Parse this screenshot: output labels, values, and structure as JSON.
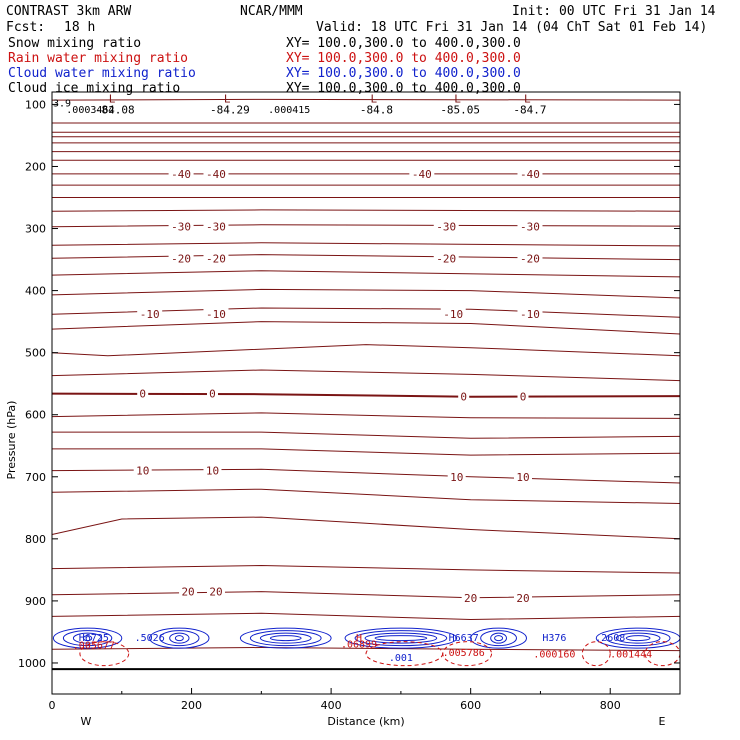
{
  "header": {
    "model": "CONTRAST  3km ARW",
    "center": "NCAR/MMM",
    "init": "Init: 00 UTC Fri 31 Jan 14",
    "fcst_label": "Fcst:",
    "fcst_value": "18 h",
    "valid": "Valid: 18 UTC Fri 31 Jan 14 (04 ChT Sat 01 Feb 14)"
  },
  "legend": [
    {
      "name": "Snow mixing ratio",
      "xy": "XY= 100.0,300.0 to 400.0,300.0",
      "color": "#000000"
    },
    {
      "name": "Rain water mixing ratio",
      "xy": "XY= 100.0,300.0 to 400.0,300.0",
      "color": "#cc1111"
    },
    {
      "name": "Cloud water mixing ratio",
      "xy": "XY= 100.0,300.0 to 400.0,300.0",
      "color": "#1122cc"
    },
    {
      "name": "Cloud ice mixing ratio",
      "xy": "XY= 100.0,300.0 to 400.0,300.0",
      "color": "#000000"
    }
  ],
  "colors": {
    "temperature": "#7a1414",
    "rain": "#cc1111",
    "cloud_water": "#1122cc",
    "frame": "#000000"
  },
  "chart_data": {
    "type": "cross-section",
    "xlabel": "Distance (km)",
    "ylabel": "Pressure (hPa)",
    "xlim": [
      0,
      900
    ],
    "ylim": [
      1050,
      80
    ],
    "x_ticks": [
      0,
      200,
      400,
      600,
      800
    ],
    "y_ticks": [
      100,
      200,
      300,
      400,
      500,
      600,
      700,
      800,
      900,
      1000
    ],
    "x_end_labels": {
      "left": "W",
      "right": "E"
    },
    "temperature_lines": [
      {
        "x": [
          0,
          300,
          900
        ],
        "p": [
          93,
          92,
          93
        ]
      },
      {
        "x": [
          0,
          900
        ],
        "p": [
          130,
          130
        ]
      },
      {
        "x": [
          0,
          900
        ],
        "p": [
          145,
          145
        ]
      },
      {
        "x": [
          0,
          900
        ],
        "p": [
          152,
          152
        ]
      },
      {
        "x": [
          0,
          900
        ],
        "p": [
          162,
          162
        ]
      },
      {
        "x": [
          0,
          900
        ],
        "p": [
          176,
          176
        ]
      },
      {
        "x": [
          0,
          900
        ],
        "p": [
          190,
          190
        ]
      },
      {
        "x": [
          0,
          900
        ],
        "p": [
          212,
          212
        ]
      },
      {
        "x": [
          0,
          900
        ],
        "p": [
          230,
          230
        ]
      },
      {
        "x": [
          0,
          900
        ],
        "p": [
          250,
          250
        ]
      },
      {
        "x": [
          0,
          300,
          900
        ],
        "p": [
          272,
          270,
          272
        ]
      },
      {
        "x": [
          0,
          300,
          900
        ],
        "p": [
          297,
          294,
          296
        ]
      },
      {
        "x": [
          0,
          300,
          900
        ],
        "p": [
          327,
          323,
          328
        ]
      },
      {
        "x": [
          0,
          300,
          900
        ],
        "p": [
          348,
          342,
          350
        ]
      },
      {
        "x": [
          0,
          300,
          900
        ],
        "p": [
          375,
          368,
          378
        ]
      },
      {
        "x": [
          0,
          300,
          600,
          900
        ],
        "p": [
          407,
          398,
          400,
          412
        ]
      },
      {
        "x": [
          0,
          300,
          600,
          900
        ],
        "p": [
          438,
          428,
          430,
          443
        ]
      },
      {
        "x": [
          0,
          300,
          600,
          900
        ],
        "p": [
          462,
          450,
          453,
          470
        ]
      },
      {
        "x": [
          0,
          80,
          450,
          600,
          900
        ],
        "p": [
          500,
          505,
          487,
          492,
          505
        ]
      },
      {
        "x": [
          0,
          300,
          600,
          900
        ],
        "p": [
          537,
          528,
          535,
          545
        ]
      },
      {
        "x": [
          0,
          300,
          600,
          900
        ],
        "p": [
          566,
          567,
          571,
          570
        ]
      },
      {
        "x": [
          0,
          300,
          600,
          900
        ],
        "p": [
          603,
          597,
          605,
          606
        ]
      },
      {
        "x": [
          0,
          300,
          600,
          900
        ],
        "p": [
          628,
          628,
          638,
          635
        ]
      },
      {
        "x": [
          0,
          300,
          600,
          900
        ],
        "p": [
          655,
          655,
          665,
          662
        ]
      },
      {
        "x": [
          0,
          300,
          600,
          900
        ],
        "p": [
          690,
          688,
          700,
          710
        ]
      },
      {
        "x": [
          0,
          300,
          600,
          900
        ],
        "p": [
          725,
          720,
          737,
          743
        ]
      },
      {
        "x": [
          0,
          100,
          300,
          450,
          600,
          900
        ],
        "p": [
          793,
          768,
          765,
          775,
          785,
          800
        ]
      },
      {
        "x": [
          0,
          300,
          600,
          900
        ],
        "p": [
          848,
          843,
          850,
          855
        ]
      },
      {
        "x": [
          0,
          300,
          600,
          900
        ],
        "p": [
          890,
          885,
          895,
          890
        ]
      },
      {
        "x": [
          0,
          300,
          600,
          900
        ],
        "p": [
          925,
          920,
          930,
          925
        ]
      },
      {
        "x": [
          0,
          300,
          600,
          900
        ],
        "p": [
          978,
          975,
          978,
          980
        ]
      }
    ],
    "temperature_labels": [
      {
        "text": "-40",
        "x": 185,
        "p": 212
      },
      {
        "text": "-40",
        "x": 235,
        "p": 212
      },
      {
        "text": "-40",
        "x": 530,
        "p": 212
      },
      {
        "text": "-40",
        "x": 685,
        "p": 212
      },
      {
        "text": "-30",
        "x": 185,
        "p": 297
      },
      {
        "text": "-30",
        "x": 235,
        "p": 297
      },
      {
        "text": "-30",
        "x": 565,
        "p": 297
      },
      {
        "text": "-30",
        "x": 685,
        "p": 297
      },
      {
        "text": "-20",
        "x": 185,
        "p": 348
      },
      {
        "text": "-20",
        "x": 235,
        "p": 348
      },
      {
        "text": "-20",
        "x": 565,
        "p": 348
      },
      {
        "text": "-20",
        "x": 685,
        "p": 348
      },
      {
        "text": "-10",
        "x": 140,
        "p": 438
      },
      {
        "text": "-10",
        "x": 235,
        "p": 438
      },
      {
        "text": "-10",
        "x": 575,
        "p": 438
      },
      {
        "text": "-10",
        "x": 685,
        "p": 438
      },
      {
        "text": "0",
        "x": 130,
        "p": 566
      },
      {
        "text": "0",
        "x": 230,
        "p": 566
      },
      {
        "text": "0",
        "x": 590,
        "p": 571
      },
      {
        "text": "0",
        "x": 675,
        "p": 571
      },
      {
        "text": "10",
        "x": 130,
        "p": 690
      },
      {
        "text": "10",
        "x": 230,
        "p": 690
      },
      {
        "text": "10",
        "x": 580,
        "p": 700
      },
      {
        "text": "10",
        "x": 675,
        "p": 700
      },
      {
        "text": "20",
        "x": 195,
        "p": 885
      },
      {
        "text": "20",
        "x": 235,
        "p": 885
      },
      {
        "text": "20",
        "x": 600,
        "p": 895
      },
      {
        "text": "20",
        "x": 675,
        "p": 895
      }
    ],
    "min_markers": [
      {
        "letter": "L",
        "text": "-84.08",
        "x": 90,
        "p": 100
      },
      {
        "letter": "L",
        "text": "-84.29",
        "x": 255,
        "p": 100
      },
      {
        "letter": "L",
        "text": "-84.8",
        "x": 465,
        "p": 100
      },
      {
        "letter": "L",
        "text": "-85.05",
        "x": 585,
        "p": 100
      },
      {
        "letter": "L",
        "text": "-84.7",
        "x": 685,
        "p": 100
      }
    ],
    "max_markers": [
      {
        "letter": "H",
        "text": ".0003462",
        "x": 55,
        "p": 107,
        "color": "#000000"
      },
      {
        "letter": "H",
        "text": ".000415",
        "x": 340,
        "p": 107,
        "color": "#000000"
      },
      {
        "letter": "H",
        "text": "H6725",
        "x": 60,
        "p": 958,
        "color": "#1122cc"
      },
      {
        "letter": "H",
        "text": ".5026",
        "x": 140,
        "p": 958,
        "color": "#1122cc"
      },
      {
        "letter": "H",
        "text": "H6637",
        "x": 590,
        "p": 958,
        "color": "#1122cc"
      },
      {
        "letter": "H",
        "text": "H376",
        "x": 720,
        "p": 958,
        "color": "#1122cc"
      },
      {
        "letter": "H",
        "text": ".2608",
        "x": 800,
        "p": 958,
        "color": "#1122cc"
      },
      {
        "letter": "H",
        "text": "H",
        "x": 440,
        "p": 958,
        "color": "#cc1111"
      },
      {
        "letter": "H",
        "text": ".06899",
        "x": 440,
        "p": 969,
        "color": "#cc1111"
      },
      {
        "letter": "H",
        "text": ".001",
        "x": 500,
        "p": 990,
        "color": "#1122cc"
      },
      {
        "letter": "H",
        "text": ".005786",
        "x": 590,
        "p": 982,
        "color": "#cc1111"
      },
      {
        "letter": "H",
        "text": ".000160",
        "x": 720,
        "p": 985,
        "color": "#cc1111"
      },
      {
        "letter": "H",
        "text": ".005677",
        "x": 60,
        "p": 970,
        "color": "#cc1111"
      },
      {
        "letter": "H",
        "text": ".001444",
        "x": 830,
        "p": 985,
        "color": "#cc1111"
      }
    ],
    "left_edge_label": "3.9",
    "surface_p": 1010
  }
}
